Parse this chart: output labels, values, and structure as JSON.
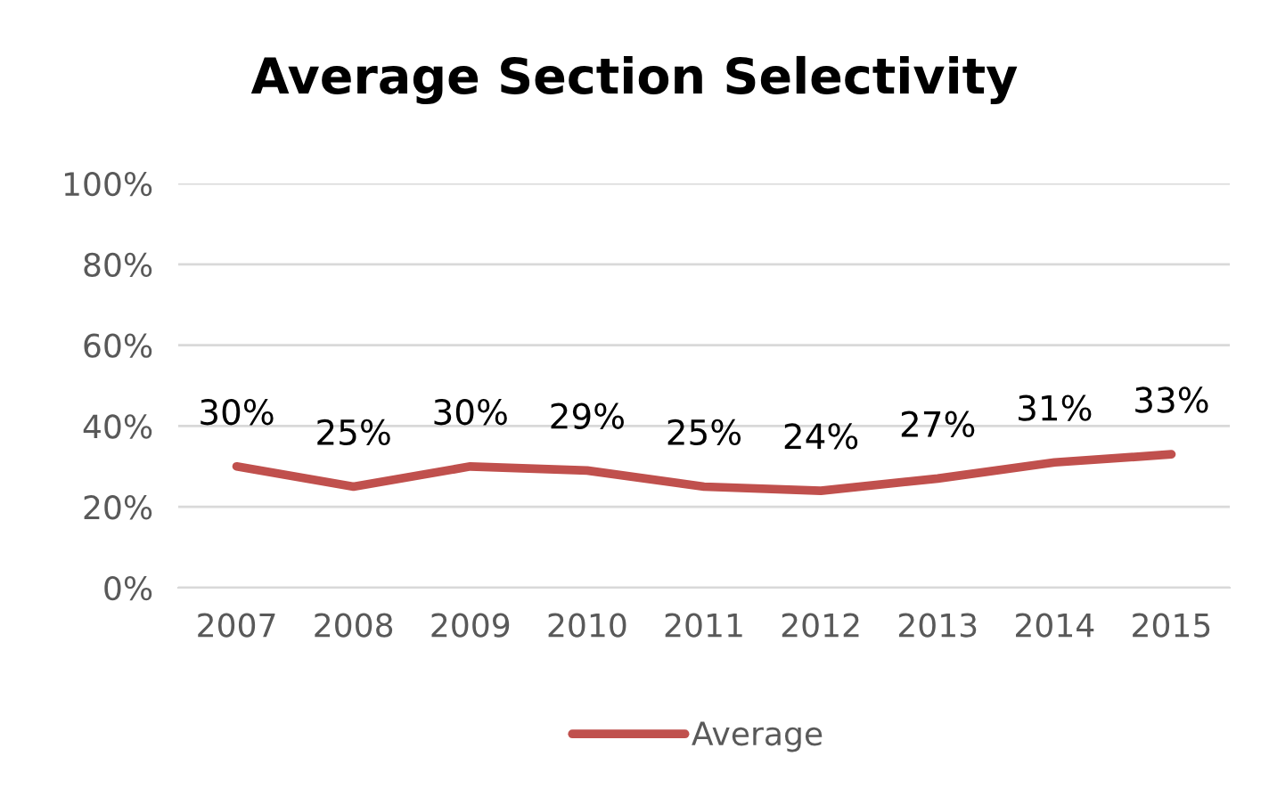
{
  "chart_data": {
    "type": "line",
    "title": "Average Section Selectivity",
    "categories": [
      "2007",
      "2008",
      "2009",
      "2010",
      "2011",
      "2012",
      "2013",
      "2014",
      "2015"
    ],
    "series": [
      {
        "name": "Average",
        "color": "#c0504d",
        "values": [
          30,
          25,
          30,
          29,
          25,
          24,
          27,
          31,
          33
        ],
        "value_labels": [
          "30%",
          "25%",
          "30%",
          "29%",
          "25%",
          "24%",
          "27%",
          "31%",
          "33%"
        ]
      }
    ],
    "ylim": [
      0,
      100
    ],
    "yticks": [
      {
        "value": 0,
        "label": "0%"
      },
      {
        "value": 20,
        "label": "20%"
      },
      {
        "value": 40,
        "label": "40%"
      },
      {
        "value": 60,
        "label": "60%"
      },
      {
        "value": 80,
        "label": "80%"
      },
      {
        "value": 100,
        "label": "100%"
      }
    ],
    "grid": "y",
    "legend": "bottom",
    "marker": "none",
    "line_style": "solid"
  }
}
